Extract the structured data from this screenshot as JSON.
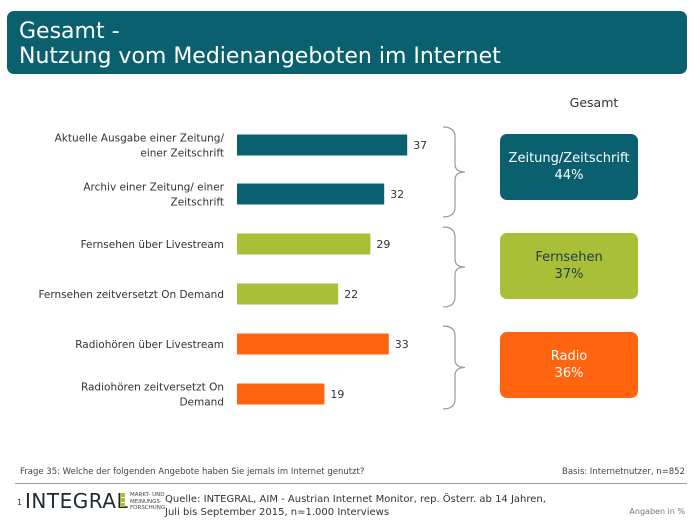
{
  "header": {
    "line1": "Gesamt -",
    "line2": "Nutzung vom Medienangeboten im Internet"
  },
  "column_heading": "Gesamt",
  "colors": {
    "header": "#0b6070",
    "newspaper": "#0b6070",
    "tv": "#a9bf38",
    "radio": "#ff6410",
    "bracket": "#9a9a9a"
  },
  "chart_data": {
    "type": "bar",
    "orientation": "horizontal",
    "categories": [
      [
        "Aktuelle Ausgabe einer Zeitung/",
        "einer Zeitschrift"
      ],
      [
        "Archiv einer Zeitung/ einer",
        "Zeitschrift"
      ],
      [
        "Fernsehen über Livestream"
      ],
      [
        "Fernsehen zeitversetzt On Demand"
      ],
      [
        "Radiohören über Livestream"
      ],
      [
        "Radiohören zeitversetzt On",
        "Demand"
      ]
    ],
    "values": [
      37,
      32,
      29,
      22,
      33,
      19
    ],
    "value_labels": [
      "37",
      "32",
      "29",
      "22",
      "33",
      "19"
    ],
    "groups": [
      "newspaper",
      "newspaper",
      "tv",
      "tv",
      "radio",
      "radio"
    ],
    "xlim": [
      0,
      40
    ],
    "grid": false,
    "legend": "none"
  },
  "summaries": [
    {
      "line1": "Zeitung/Zeitschrift",
      "line2": "44%",
      "group": "newspaper"
    },
    {
      "line1": "Fernsehen",
      "line2": "37%",
      "group": "tv"
    },
    {
      "line1": "Radio",
      "line2": "36%",
      "group": "radio"
    }
  ],
  "footer": {
    "question": "Frage 35: Welche der folgenden Angebote haben Sie jemals im Internet genutzt?",
    "basis": "Basis: Internetnutzer, n=852",
    "slide_number": "1",
    "logo_text": "INTEGRAL",
    "logo_subtext": [
      "MARKT- UND",
      "MEINUNGS-",
      "FORSCHUNG"
    ],
    "source_line1": "Quelle: INTEGRAL, AIM - Austrian Internet Monitor, rep. Österr. ab 14 Jahren,",
    "source_line2": "Juli bis September 2015, n=1.000  Interviews",
    "units": "Angaben in %"
  }
}
